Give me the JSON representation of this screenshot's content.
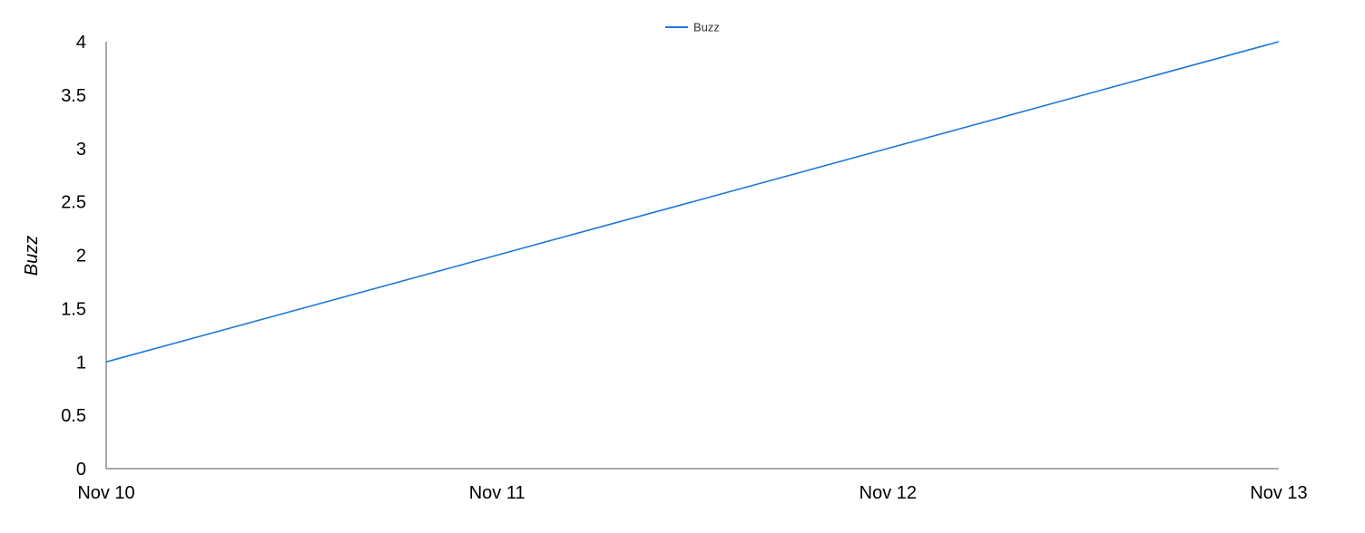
{
  "chart_data": {
    "type": "line",
    "x": [
      "Nov 10",
      "Nov 11",
      "Nov 12",
      "Nov 13"
    ],
    "series": [
      {
        "name": "Buzz",
        "values": [
          1,
          2,
          3,
          4
        ],
        "color": "#1f77d8"
      }
    ],
    "title": "",
    "xlabel": "",
    "ylabel": "Buzz",
    "ylim": [
      0,
      4
    ],
    "yticks": [
      "0",
      "0.5",
      "1",
      "1.5",
      "2",
      "2.5",
      "3",
      "3.5",
      "4"
    ],
    "grid": false,
    "legend": "top-center"
  }
}
